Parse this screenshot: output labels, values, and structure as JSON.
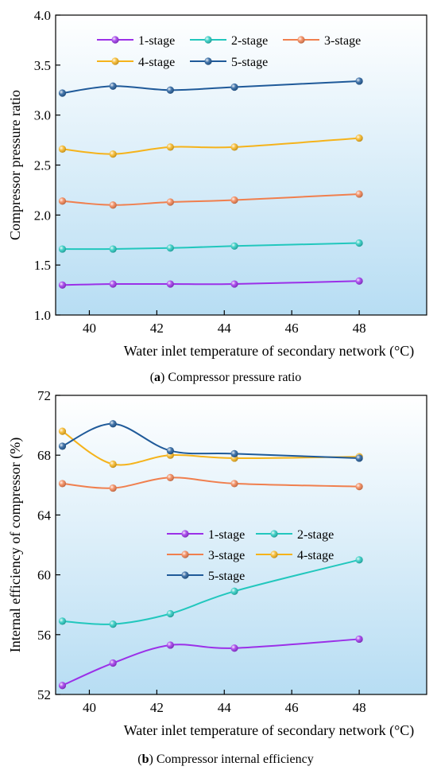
{
  "figure": {
    "caption_a": {
      "letter": "a",
      "text": "Compressor pressure ratio"
    },
    "caption_b": {
      "letter": "b",
      "text": "Compressor internal efficiency"
    }
  },
  "chart_data": [
    {
      "type": "line",
      "id": "a",
      "xlabel": "Water inlet temperature of secondary network (°C)",
      "ylabel": "Compressor pressure ratio",
      "xlim": [
        39,
        50
      ],
      "ylim": [
        1.0,
        4.0
      ],
      "xticks": [
        "40",
        "42",
        "44",
        "46",
        "48"
      ],
      "yticks": [
        "1.0",
        "1.5",
        "2.0",
        "2.5",
        "3.0",
        "3.5",
        "4.0"
      ],
      "x": [
        39.2,
        40.7,
        42.4,
        44.3,
        48.0
      ],
      "legend_position": "top",
      "grid": false,
      "background": "gradient light blue",
      "series": [
        {
          "name": "1-stage",
          "color": "#9b30e8",
          "values": [
            1.3,
            1.31,
            1.31,
            1.31,
            1.34
          ]
        },
        {
          "name": "2-stage",
          "color": "#22c7bd",
          "values": [
            1.66,
            1.66,
            1.67,
            1.69,
            1.72
          ]
        },
        {
          "name": "3-stage",
          "color": "#f07f4e",
          "values": [
            2.14,
            2.1,
            2.13,
            2.15,
            2.21
          ]
        },
        {
          "name": "4-stage",
          "color": "#f5b31b",
          "values": [
            2.66,
            2.61,
            2.68,
            2.68,
            2.77
          ]
        },
        {
          "name": "5-stage",
          "color": "#1f5a99",
          "values": [
            3.22,
            3.29,
            3.25,
            3.28,
            3.34
          ]
        }
      ]
    },
    {
      "type": "line",
      "id": "b",
      "xlabel": "Water inlet temperature of secondary network (°C)",
      "ylabel": "Internal efficiency of compressor  (%)",
      "xlim": [
        39,
        50
      ],
      "ylim": [
        52,
        72
      ],
      "xticks": [
        "40",
        "42",
        "44",
        "46",
        "48"
      ],
      "yticks": [
        "52",
        "56",
        "60",
        "64",
        "68",
        "72"
      ],
      "x": [
        39.2,
        40.7,
        42.4,
        44.3,
        48.0
      ],
      "legend_position": "center",
      "grid": false,
      "background": "gradient light blue",
      "series": [
        {
          "name": "1-stage",
          "color": "#9b30e8",
          "values": [
            52.6,
            54.1,
            55.3,
            55.1,
            55.7
          ]
        },
        {
          "name": "2-stage",
          "color": "#22c7bd",
          "values": [
            56.9,
            56.7,
            57.4,
            58.9,
            61.0
          ]
        },
        {
          "name": "3-stage",
          "color": "#f07f4e",
          "values": [
            66.1,
            65.8,
            66.5,
            66.1,
            65.9
          ]
        },
        {
          "name": "4-stage",
          "color": "#f5b31b",
          "values": [
            69.6,
            67.4,
            68.0,
            67.8,
            67.9
          ]
        },
        {
          "name": "5-stage",
          "color": "#1f5a99",
          "values": [
            68.6,
            70.1,
            68.3,
            68.1,
            67.8
          ]
        }
      ]
    }
  ]
}
